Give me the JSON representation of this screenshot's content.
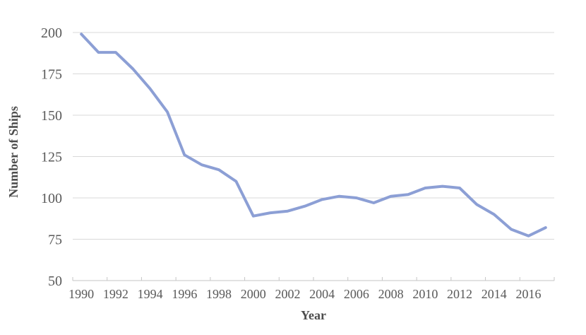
{
  "chart_data": {
    "type": "line",
    "title": "",
    "xlabel": "Year",
    "ylabel": "Number of Ships",
    "x": [
      1990,
      1991,
      1992,
      1993,
      1994,
      1995,
      1996,
      1997,
      1998,
      1999,
      2000,
      2001,
      2002,
      2003,
      2004,
      2005,
      2006,
      2007,
      2008,
      2009,
      2010,
      2011,
      2012,
      2013,
      2014,
      2015,
      2016,
      2017
    ],
    "series": [
      {
        "name": "Number of Ships",
        "values": [
          199,
          188,
          188,
          178,
          166,
          152,
          126,
          120,
          117,
          110,
          89,
          91,
          92,
          95,
          99,
          101,
          100,
          97,
          101,
          102,
          106,
          107,
          106,
          96,
          90,
          81,
          77,
          82
        ],
        "color": "#8C9FD5"
      }
    ],
    "ylim": [
      50,
      200
    ],
    "yticks": [
      50,
      75,
      100,
      125,
      150,
      175,
      200
    ],
    "xtick_labels": [
      "1990",
      "1992",
      "1994",
      "1996",
      "1998",
      "2000",
      "2002",
      "2004",
      "2006",
      "2008",
      "2010",
      "2012",
      "2014",
      "2016"
    ],
    "grid": true,
    "legend_position": "none",
    "colors": {
      "background": "#FFFFFF",
      "grid_color": "#D9D9D9",
      "axis_color": "#C6C6C6",
      "tick_label_color": "#595959",
      "axis_title_color": "#4D4D4D"
    },
    "line_width": 4
  }
}
